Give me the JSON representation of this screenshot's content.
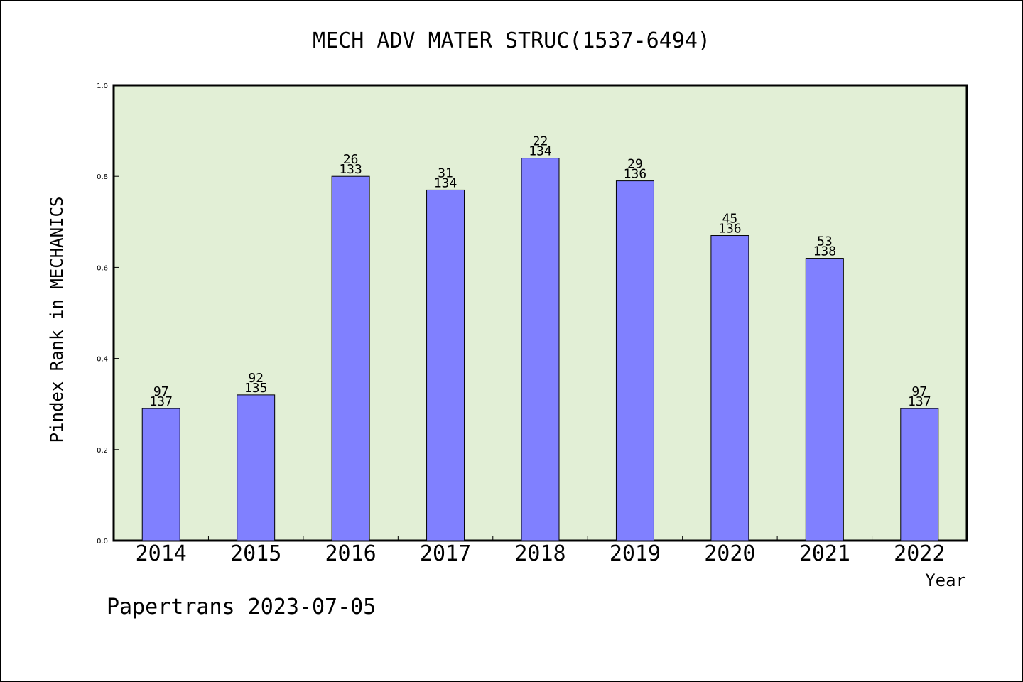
{
  "chart_data": {
    "type": "bar",
    "title": "MECH ADV MATER STRUC(1537-6494)",
    "xlabel": "Year",
    "ylabel": "Pindex Rank in MECHANICS",
    "ylim": [
      0,
      1.0
    ],
    "yticks": [
      "0.0",
      "0.2",
      "0.4",
      "0.6",
      "0.8",
      "1.0"
    ],
    "grid": false,
    "categories": [
      "2014",
      "2015",
      "2016",
      "2017",
      "2018",
      "2019",
      "2020",
      "2021",
      "2022"
    ],
    "values": [
      0.29,
      0.32,
      0.8,
      0.77,
      0.84,
      0.79,
      0.67,
      0.62,
      0.29
    ],
    "rank_labels": [
      "97",
      "92",
      "26",
      "31",
      "22",
      "29",
      "45",
      "53",
      "97"
    ],
    "total_labels": [
      "137",
      "135",
      "133",
      "134",
      "134",
      "136",
      "136",
      "138",
      "137"
    ],
    "colors": {
      "bar": "#8080ff",
      "plot_background": "#e2efd6",
      "axis": "#000000"
    }
  },
  "footer": "Papertrans 2023-07-05"
}
